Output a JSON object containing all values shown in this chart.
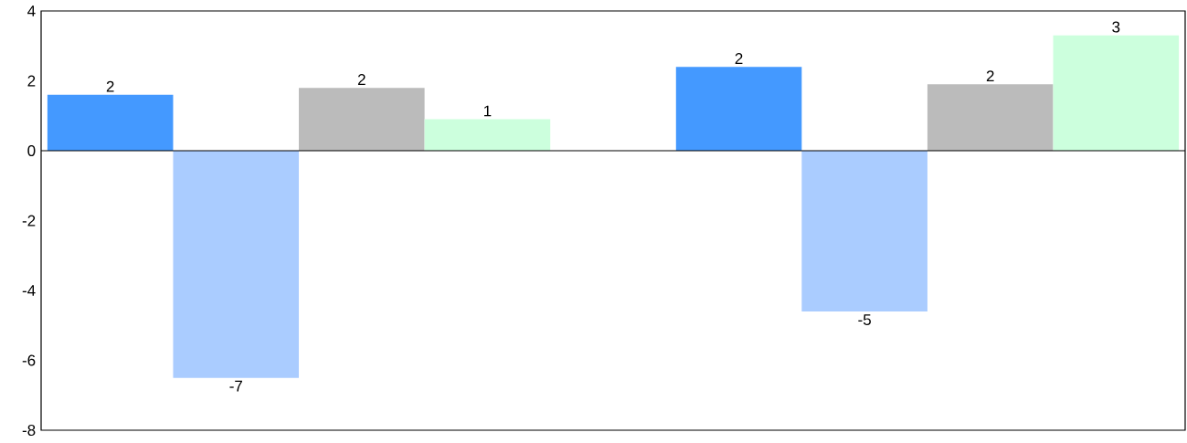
{
  "chart_data": {
    "type": "bar",
    "categories": [
      null,
      null
    ],
    "series": [
      {
        "color": "#4499ff",
        "values": [
          1.6,
          2.4
        ],
        "value_labels": [
          "2",
          "2"
        ]
      },
      {
        "color": "#aaccff",
        "values": [
          -6.5,
          -4.6
        ],
        "value_labels": [
          "-7",
          "-5"
        ]
      },
      {
        "color": "#bbbbbb",
        "values": [
          1.8,
          1.9
        ],
        "value_labels": [
          "2",
          "2"
        ]
      },
      {
        "color": "#ccffdd",
        "values": [
          0.9,
          3.3
        ],
        "value_labels": [
          "1",
          "3"
        ]
      }
    ],
    "ylim": [
      -8,
      4
    ],
    "yticks": [
      -8,
      -6,
      -4,
      -2,
      0,
      2,
      4
    ]
  }
}
